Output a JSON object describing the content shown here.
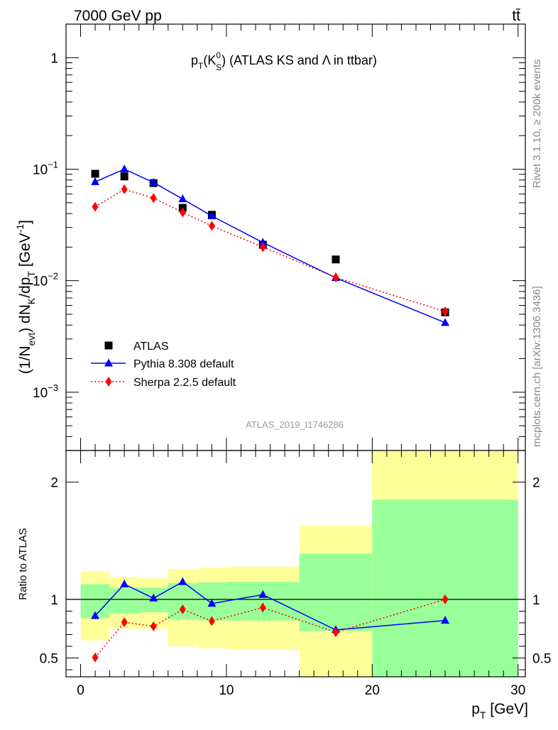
{
  "header": {
    "left": "7000 GeV pp",
    "right": "tt̄"
  },
  "side_text": {
    "rivet": "Rivet 3.1.10, ≥ 200k events",
    "mcplots": "mcplots.cern.ch [arXiv:1306.3436]"
  },
  "colors": {
    "pythia": "#0000ff",
    "sherpa": "#ff0000",
    "data": "#000000",
    "band_outer": "#ffff99",
    "band_inner": "#99ff99"
  },
  "chart_data": [
    {
      "type": "scatter",
      "panel": "main",
      "title_parts": {
        "p": "p",
        "T": "T",
        "open": "(K",
        "sup": "0",
        "sub": "S",
        "close": ")",
        "rest": " (ATLAS KS and ",
        "lambda": "Λ",
        "tail": " in ttbar)"
      },
      "ylabel_parts": {
        "a": "(1/N",
        "evt": "evt",
        "b": ") dN",
        "K": "K",
        "c": "/dp",
        "T": "T",
        "d": " [GeV",
        "exp": "-1",
        "e": "]"
      },
      "yscale": "log",
      "ylim": [
        0.0003,
        2.0
      ],
      "xlim": [
        -1,
        30.5
      ],
      "yticks": [
        {
          "value": 1,
          "base": "1",
          "exp": ""
        },
        {
          "value": 0.1,
          "base": "10",
          "exp": "−1"
        },
        {
          "value": 0.01,
          "base": "10",
          "exp": "−2"
        },
        {
          "value": 0.001,
          "base": "10",
          "exp": "−3"
        }
      ],
      "watermark": "ATLAS_2019_I1746286",
      "legend_position": "bottom-left",
      "series": [
        {
          "name": "ATLAS",
          "key": "data",
          "marker": "square",
          "x": [
            1,
            3,
            5,
            7,
            9,
            12.5,
            17.5,
            25
          ],
          "y": [
            0.091,
            0.086,
            0.075,
            0.045,
            0.039,
            0.021,
            0.0155,
            0.0052
          ]
        },
        {
          "name": "Pythia 8.308 default",
          "key": "pythia",
          "marker": "triangle",
          "line": "solid",
          "x": [
            1,
            3,
            5,
            7,
            9,
            12.5,
            17.5,
            25
          ],
          "y": [
            0.077,
            0.1,
            0.076,
            0.054,
            0.038,
            0.022,
            0.0106,
            0.0042
          ]
        },
        {
          "name": "Sherpa 2.2.5 default",
          "key": "sherpa",
          "marker": "diamond",
          "line": "dotted",
          "x": [
            1,
            3,
            5,
            7,
            9,
            12.5,
            17.5,
            25
          ],
          "y": [
            0.046,
            0.066,
            0.055,
            0.041,
            0.031,
            0.02,
            0.0107,
            0.0053
          ]
        }
      ]
    },
    {
      "type": "line",
      "panel": "ratio",
      "ylabel": "Ratio to ATLAS",
      "xlabel_parts": {
        "p": "p",
        "T": "T",
        "unit": " [GeV]"
      },
      "xlim": [
        -1,
        30.5
      ],
      "ylim": [
        0.34,
        2.27
      ],
      "xticks": [
        0,
        10,
        20,
        30
      ],
      "yticks": [
        0.5,
        1,
        2
      ],
      "bands": [
        {
          "x0": 0,
          "x1": 2,
          "outer": [
            0.65,
            1.24
          ],
          "inner": [
            0.84,
            1.13
          ]
        },
        {
          "x0": 2,
          "x1": 4,
          "outer": [
            0.75,
            1.19
          ],
          "inner": [
            0.88,
            1.1
          ]
        },
        {
          "x0": 4,
          "x1": 6,
          "outer": [
            0.75,
            1.18
          ],
          "inner": [
            0.89,
            1.1
          ]
        },
        {
          "x0": 6,
          "x1": 8,
          "outer": [
            0.6,
            1.26
          ],
          "inner": [
            0.83,
            1.14
          ]
        },
        {
          "x0": 8,
          "x1": 10,
          "outer": [
            0.585,
            1.27
          ],
          "inner": [
            0.82,
            1.145
          ]
        },
        {
          "x0": 10,
          "x1": 15,
          "outer": [
            0.57,
            1.28
          ],
          "inner": [
            0.82,
            1.15
          ]
        },
        {
          "x0": 15,
          "x1": 20,
          "outer": [
            0.3,
            1.63
          ],
          "inner": [
            0.73,
            1.39
          ]
        },
        {
          "x0": 20,
          "x1": 30,
          "outer": [
            0.3,
            2.6
          ],
          "inner": [
            0.3,
            1.85
          ]
        }
      ],
      "reference": 1,
      "series": [
        {
          "name": "Pythia 8.308 default",
          "key": "pythia",
          "marker": "triangle",
          "line": "solid",
          "x": [
            1,
            3,
            5,
            7,
            9,
            12.5,
            17.5,
            25
          ],
          "y": [
            0.86,
            1.13,
            1.01,
            1.15,
            0.965,
            1.04,
            0.74,
            0.82
          ]
        },
        {
          "name": "Sherpa 2.2.5 default",
          "key": "sherpa",
          "marker": "diamond",
          "line": "dotted",
          "x": [
            1,
            3,
            5,
            7,
            9,
            12.5,
            17.5,
            25
          ],
          "y": [
            0.505,
            0.805,
            0.77,
            0.915,
            0.815,
            0.93,
            0.72,
            1.0
          ]
        }
      ]
    }
  ]
}
